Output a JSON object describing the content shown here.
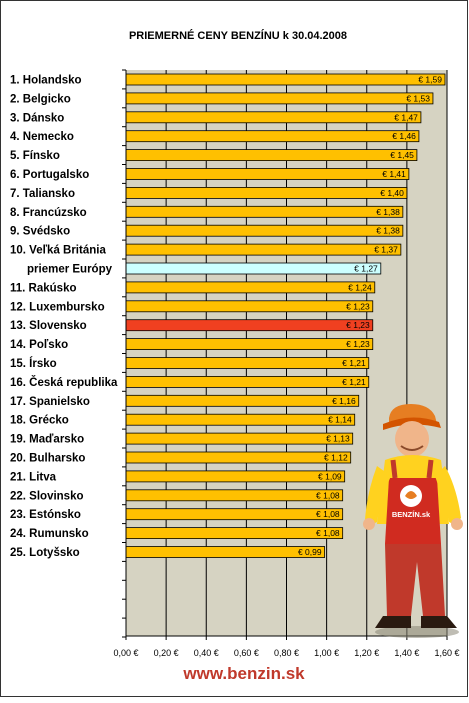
{
  "chart_data": {
    "type": "bar",
    "orientation": "horizontal",
    "title": "PRIEMERNÉ CENY BENZÍNU k 30.04.2008",
    "categories": [
      "1. Holandsko",
      "2. Belgicko",
      "3. Dánsko",
      "4. Nemecko",
      "5. Fínsko",
      "6. Portugalsko",
      "7. Taliansko",
      "8. Francúzsko",
      "9. Svédsko",
      "10. Veľká Británia",
      "priemer Európy",
      "11. Rakúsko",
      "12. Luxembursko",
      "13. Slovensko",
      "14. Poľsko",
      "15. Írsko",
      "16. Česká republika",
      "17. Spanielsko",
      "18. Grécko",
      "19. Maďarsko",
      "20. Bulharsko",
      "21. Litva",
      "22. Slovinsko",
      "23. Estónsko",
      "24. Rumunsko",
      "25. Lotyšsko"
    ],
    "values": [
      1.59,
      1.53,
      1.47,
      1.46,
      1.45,
      1.41,
      1.4,
      1.38,
      1.38,
      1.37,
      1.27,
      1.24,
      1.23,
      1.23,
      1.23,
      1.21,
      1.21,
      1.16,
      1.14,
      1.13,
      1.12,
      1.09,
      1.08,
      1.08,
      1.08,
      0.99
    ],
    "value_labels": [
      "€ 1,59",
      "€ 1,53",
      "€ 1,47",
      "€ 1,46",
      "€ 1,45",
      "€ 1,41",
      "€ 1,40",
      "€ 1,38",
      "€ 1,38",
      "€ 1,37",
      "€ 1,27",
      "€ 1,24",
      "€ 1,23",
      "€ 1,23",
      "€ 1,23",
      "€ 1,21",
      "€ 1,21",
      "€ 1,16",
      "€ 1,14",
      "€ 1,13",
      "€ 1,12",
      "€ 1,09",
      "€ 1,08",
      "€ 1,08",
      "€ 1,08",
      "€ 0,99"
    ],
    "highlight": {
      "priemer Európy": {
        "bar": "#ccffff",
        "label": "#6fb1d6"
      },
      "13. Slovensko": {
        "bar": "#f04020",
        "label": "#ff3333"
      }
    },
    "xlim": [
      0,
      1.6
    ],
    "xticks": [
      0,
      0.2,
      0.4,
      0.6,
      0.8,
      1.0,
      1.2,
      1.4,
      1.6
    ],
    "xtick_labels": [
      "0,00 €",
      "0,20 €",
      "0,40 €",
      "0,60 €",
      "0,80 €",
      "1,00 €",
      "1,20 €",
      "1,40 €",
      "1,60 €"
    ],
    "grid": "vertical",
    "xlabel": "",
    "ylabel": ""
  },
  "colors": {
    "bar": "#ffc000",
    "bar_border": "#000000",
    "plot_background": "#d6d3c2",
    "gridline": "#000000",
    "frame_border": "#333333"
  },
  "footer": {
    "website": "www.benzin.sk"
  },
  "mascot": {
    "icon": "gas-station-attendant-icon",
    "logo_text": "BENZÍN.sk"
  }
}
